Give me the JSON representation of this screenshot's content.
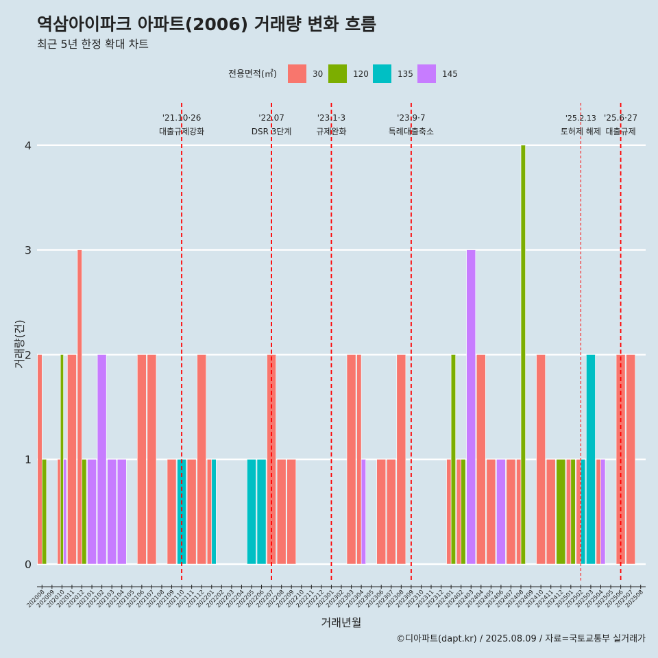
{
  "chart_data": {
    "type": "bar",
    "title": "역삼아이파크 아파트(2006) 거래량 변화 흐름",
    "subtitle": "최근 5년 한정 확대 차트",
    "xlabel": "거래년월",
    "ylabel": "거래량(건)",
    "ylim": [
      0,
      4
    ],
    "yticks": [
      0,
      1,
      2,
      3,
      4
    ],
    "grid": true,
    "legend_title": "전용면적(㎡)",
    "legend_position": "top",
    "caption": "©디아파트(dapt.kr) / 2025.08.09 / 자료=국토교통부 실거래가",
    "categories": [
      "202008",
      "202009",
      "202010",
      "202011",
      "202012",
      "202101",
      "202102",
      "202103",
      "202104",
      "202105",
      "202106",
      "202107",
      "202108",
      "202109",
      "202110",
      "202111",
      "202112",
      "202201",
      "202202",
      "202203",
      "202204",
      "202205",
      "202206",
      "202207",
      "202208",
      "202209",
      "202210",
      "202211",
      "202212",
      "202301",
      "202302",
      "202303",
      "202304",
      "202305",
      "202306",
      "202307",
      "202308",
      "202309",
      "202310",
      "202311",
      "202312",
      "202401",
      "202402",
      "202403",
      "202404",
      "202405",
      "202406",
      "202407",
      "202408",
      "202409",
      "202410",
      "202411",
      "202412",
      "202501",
      "202502",
      "202503",
      "202504",
      "202505",
      "202506",
      "202507",
      "202508"
    ],
    "series": [
      {
        "name": "30",
        "color": "#F8766D",
        "values": [
          2,
          0,
          1,
          2,
          3,
          0,
          0,
          0,
          0,
          0,
          2,
          2,
          0,
          1,
          0,
          1,
          2,
          1,
          0,
          0,
          0,
          0,
          0,
          2,
          1,
          1,
          0,
          0,
          0,
          0,
          0,
          2,
          2,
          0,
          1,
          1,
          2,
          0,
          0,
          0,
          0,
          1,
          1,
          0,
          2,
          1,
          0,
          1,
          1,
          0,
          2,
          1,
          0,
          1,
          1,
          0,
          1,
          0,
          2,
          2,
          0
        ]
      },
      {
        "name": "120",
        "color": "#7CAE00",
        "values": [
          1,
          0,
          2,
          0,
          1,
          0,
          0,
          0,
          0,
          0,
          0,
          0,
          0,
          0,
          0,
          0,
          0,
          0,
          0,
          0,
          0,
          0,
          0,
          0,
          0,
          0,
          0,
          0,
          0,
          0,
          0,
          0,
          0,
          0,
          0,
          0,
          0,
          0,
          0,
          0,
          0,
          2,
          1,
          0,
          0,
          0,
          0,
          0,
          4,
          0,
          0,
          0,
          1,
          1,
          0,
          0,
          0,
          0,
          0,
          0,
          0
        ]
      },
      {
        "name": "135",
        "color": "#00BFC4",
        "values": [
          0,
          0,
          0,
          0,
          0,
          0,
          0,
          0,
          0,
          0,
          0,
          0,
          0,
          0,
          1,
          0,
          0,
          1,
          0,
          0,
          0,
          1,
          1,
          0,
          0,
          0,
          0,
          0,
          0,
          0,
          0,
          0,
          0,
          0,
          0,
          0,
          0,
          0,
          0,
          0,
          0,
          0,
          0,
          0,
          0,
          0,
          0,
          0,
          0,
          0,
          0,
          0,
          0,
          0,
          1,
          2,
          0,
          0,
          0,
          0,
          0
        ]
      },
      {
        "name": "145",
        "color": "#C77CFF",
        "values": [
          0,
          0,
          1,
          0,
          0,
          1,
          2,
          1,
          1,
          0,
          0,
          0,
          0,
          0,
          0,
          0,
          0,
          0,
          0,
          0,
          0,
          0,
          0,
          0,
          0,
          0,
          0,
          0,
          0,
          0,
          0,
          0,
          1,
          0,
          0,
          0,
          0,
          0,
          0,
          0,
          0,
          0,
          0,
          3,
          0,
          0,
          1,
          0,
          0,
          0,
          0,
          0,
          0,
          0,
          0,
          0,
          1,
          0,
          0,
          0,
          0
        ]
      }
    ],
    "annotations": [
      {
        "date": "'21.10·26",
        "text": "대출규제강화",
        "x": "202110",
        "line_color": "#ff0000"
      },
      {
        "date": "'22.07",
        "text": "DSR 3단계",
        "x": "202207",
        "line_color": "#ff0000"
      },
      {
        "date": "'23.1·3",
        "text": "규제완화",
        "x": "202301",
        "line_color": "#ff0000"
      },
      {
        "date": "'23.9·7",
        "text": "특례대출축소",
        "x": "202309",
        "line_color": "#ff0000"
      },
      {
        "date": "'25.2.13",
        "text": "토허제 해제",
        "x": "202502",
        "line_color": "#ff0000"
      },
      {
        "date": "'25.6·27",
        "text": "대출규제",
        "x": "202506",
        "line_color": "#ff0000"
      }
    ]
  }
}
